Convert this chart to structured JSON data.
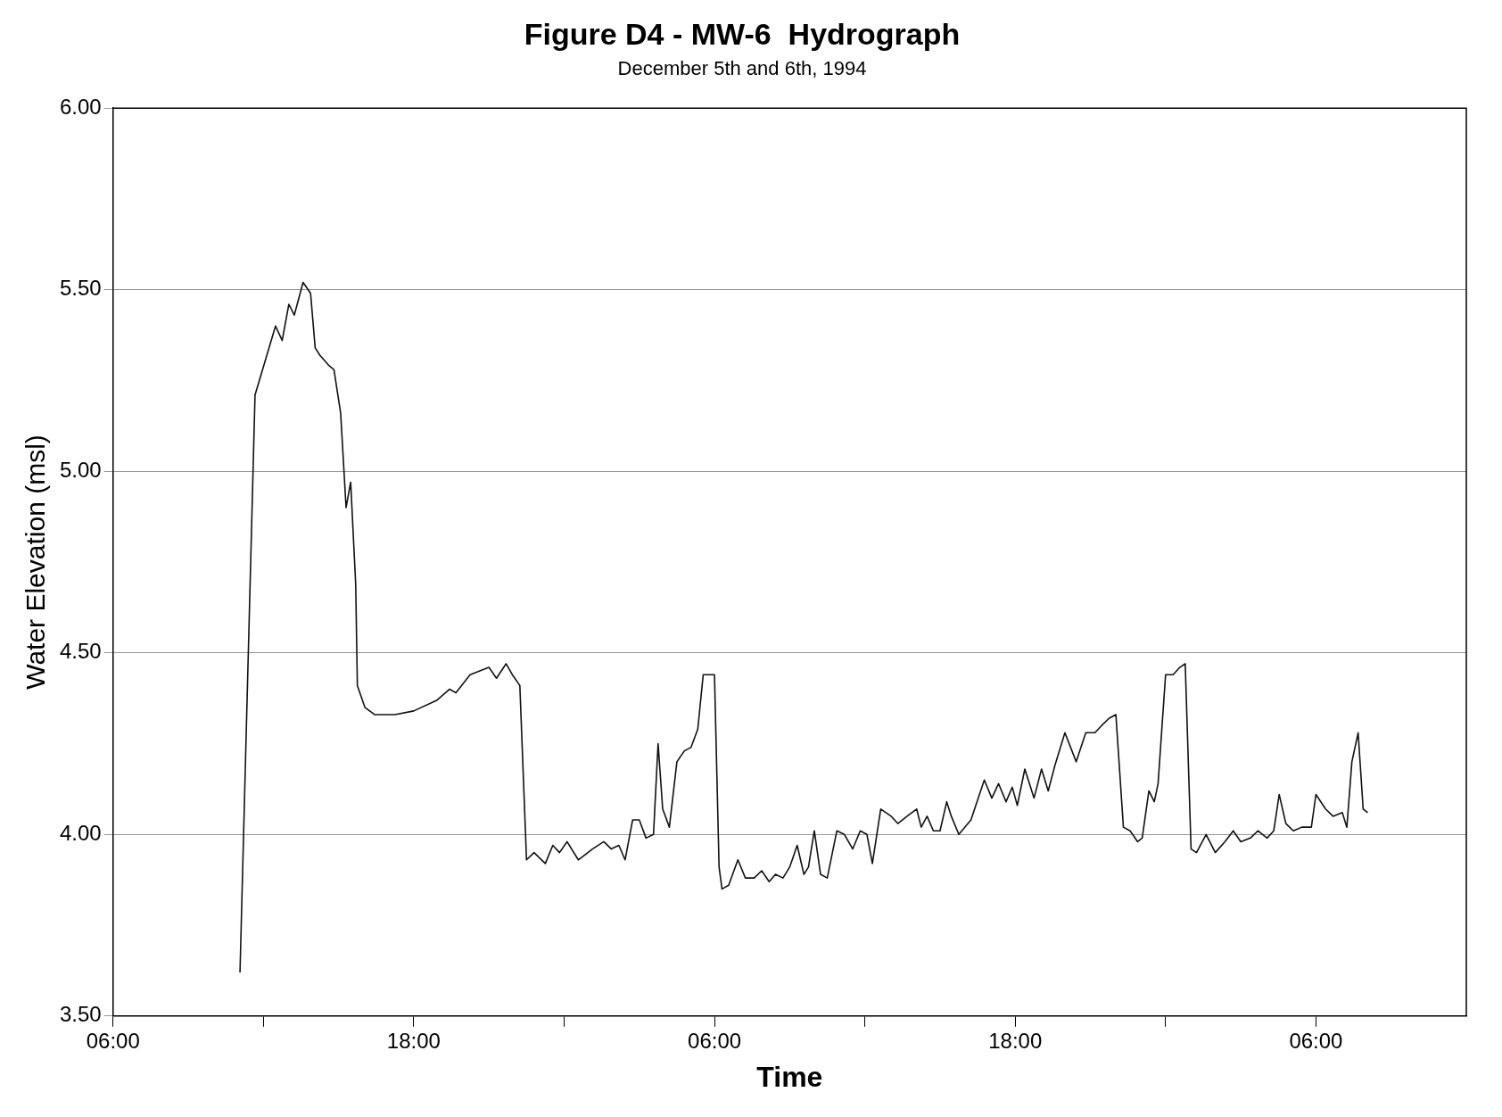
{
  "chart_data": {
    "type": "line",
    "title": "Figure D4 - MW-6  Hydrograph",
    "subtitle": "December 5th and 6th, 1994",
    "xlabel": "Time",
    "ylabel": "Water Elevation (msl)",
    "xlim": [
      "1994-12-05T06:00",
      "1994-12-07T12:00"
    ],
    "xticks": [
      {
        "value": "1994-12-05T06:00",
        "label": "06:00"
      },
      {
        "value": "1994-12-05T12:00",
        "label": null
      },
      {
        "value": "1994-12-05T18:00",
        "label": "18:00"
      },
      {
        "value": "1994-12-06T00:00",
        "label": null
      },
      {
        "value": "1994-12-06T06:00",
        "label": "06:00"
      },
      {
        "value": "1994-12-06T12:00",
        "label": null
      },
      {
        "value": "1994-12-06T18:00",
        "label": "18:00"
      },
      {
        "value": "1994-12-07T00:00",
        "label": null
      },
      {
        "value": "1994-12-07T06:00",
        "label": "06:00"
      }
    ],
    "ylim": [
      3.5,
      6
    ],
    "yticks": [
      {
        "value": 3.5,
        "label": "3.50"
      },
      {
        "value": 4,
        "label": "4.00"
      },
      {
        "value": 4.5,
        "label": "4.50"
      },
      {
        "value": 5,
        "label": "5.00"
      },
      {
        "value": 5.5,
        "label": "5.50"
      },
      {
        "value": 6,
        "label": "6.00"
      }
    ],
    "grid": "y",
    "marker": "none",
    "line_style": "solid",
    "series": [
      {
        "color": "#111111",
        "x": [
          "1994-12-05T11:04",
          "1994-12-05T11:40",
          "1994-12-05T12:29",
          "1994-12-05T12:45",
          "1994-12-05T13:01",
          "1994-12-05T13:14",
          "1994-12-05T13:35",
          "1994-12-05T13:53",
          "1994-12-05T14:04",
          "1994-12-05T14:15",
          "1994-12-05T14:38",
          "1994-12-05T14:49",
          "1994-12-05T15:05",
          "1994-12-05T15:18",
          "1994-12-05T15:29",
          "1994-12-05T15:41",
          "1994-12-05T15:45",
          "1994-12-05T16:03",
          "1994-12-05T16:26",
          "1994-12-05T16:53",
          "1994-12-05T17:15",
          "1994-12-05T18:00",
          "1994-12-05T18:56",
          "1994-12-05T19:26",
          "1994-12-05T19:41",
          "1994-12-05T20:15",
          "1994-12-05T20:38",
          "1994-12-05T21:00",
          "1994-12-05T21:18",
          "1994-12-05T21:41",
          "1994-12-05T21:56",
          "1994-12-05T22:14",
          "1994-12-05T22:30",
          "1994-12-05T22:48",
          "1994-12-05T23:15",
          "1994-12-05T23:33",
          "1994-12-05T23:49",
          "1994-12-06T00:07",
          "1994-12-06T00:34",
          "1994-12-06T01:08",
          "1994-12-06T01:35",
          "1994-12-06T01:53",
          "1994-12-06T02:11",
          "1994-12-06T02:26",
          "1994-12-06T02:44",
          "1994-12-06T03:00",
          "1994-12-06T03:16",
          "1994-12-06T03:34",
          "1994-12-06T03:45",
          "1994-12-06T03:56",
          "1994-12-06T04:12",
          "1994-12-06T04:30",
          "1994-12-06T04:48",
          "1994-12-06T05:04",
          "1994-12-06T05:20",
          "1994-12-06T05:33",
          "1994-12-06T06:00",
          "1994-12-06T06:11",
          "1994-12-06T06:18",
          "1994-12-06T06:34",
          "1994-12-06T06:56",
          "1994-12-06T07:14",
          "1994-12-06T07:35",
          "1994-12-06T07:53",
          "1994-12-06T08:11",
          "1994-12-06T08:26",
          "1994-12-06T08:44",
          "1994-12-06T09:00",
          "1994-12-06T09:18",
          "1994-12-06T09:34",
          "1994-12-06T09:45",
          "1994-12-06T09:59",
          "1994-12-06T10:14",
          "1994-12-06T10:30",
          "1994-12-06T10:53",
          "1994-12-06T11:11",
          "1994-12-06T11:31",
          "1994-12-06T11:49",
          "1994-12-06T12:05",
          "1994-12-06T12:18",
          "1994-12-06T12:38",
          "1994-12-06T13:03",
          "1994-12-06T13:19",
          "1994-12-06T13:41",
          "1994-12-06T14:04",
          "1994-12-06T14:15",
          "1994-12-06T14:29",
          "1994-12-06T14:44",
          "1994-12-06T15:00",
          "1994-12-06T15:16",
          "1994-12-06T15:27",
          "1994-12-06T15:45",
          "1994-12-06T16:14",
          "1994-12-06T16:46",
          "1994-12-06T17:04",
          "1994-12-06T17:20",
          "1994-12-06T17:38",
          "1994-12-06T17:53",
          "1994-12-06T18:05",
          "1994-12-06T18:23",
          "1994-12-06T18:45",
          "1994-12-06T19:03",
          "1994-12-06T19:19",
          "1994-12-06T19:35",
          "1994-12-06T19:59",
          "1994-12-06T20:26",
          "1994-12-06T20:49",
          "1994-12-06T21:11",
          "1994-12-06T21:27",
          "1994-12-06T21:45",
          "1994-12-06T22:01",
          "1994-12-06T22:19",
          "1994-12-06T22:35",
          "1994-12-06T22:53",
          "1994-12-06T23:04",
          "1994-12-06T23:20",
          "1994-12-06T23:33",
          "1994-12-06T23:42",
          "1994-12-07T00:00",
          "1994-12-07T00:18",
          "1994-12-07T00:34",
          "1994-12-07T00:47",
          "1994-12-07T01:01",
          "1994-12-07T01:14",
          "1994-12-07T01:37",
          "1994-12-07T01:59",
          "1994-12-07T02:22",
          "1994-12-07T02:42",
          "1994-12-07T03:00",
          "1994-12-07T03:23",
          "1994-12-07T03:41",
          "1994-12-07T04:03",
          "1994-12-07T04:19",
          "1994-12-07T04:32",
          "1994-12-07T04:48",
          "1994-12-07T05:06",
          "1994-12-07T05:26",
          "1994-12-07T05:49",
          "1994-12-07T06:00",
          "1994-12-07T06:23",
          "1994-12-07T06:41",
          "1994-12-07T07:03",
          "1994-12-07T07:14",
          "1994-12-07T07:26",
          "1994-12-07T07:41",
          "1994-12-07T07:53",
          "1994-12-07T08:04"
        ],
        "values": [
          3.62,
          5.21,
          5.4,
          5.36,
          5.46,
          5.43,
          5.52,
          5.49,
          5.34,
          5.32,
          5.29,
          5.28,
          5.16,
          4.9,
          4.97,
          4.69,
          4.41,
          4.35,
          4.33,
          4.33,
          4.33,
          4.34,
          4.37,
          4.4,
          4.39,
          4.44,
          4.45,
          4.46,
          4.43,
          4.47,
          4.44,
          4.41,
          3.93,
          3.95,
          3.92,
          3.97,
          3.95,
          3.98,
          3.93,
          3.96,
          3.98,
          3.96,
          3.97,
          3.93,
          4.04,
          4.04,
          3.99,
          4,
          4.25,
          4.07,
          4.02,
          4.2,
          4.23,
          4.24,
          4.29,
          4.44,
          4.44,
          3.91,
          3.85,
          3.86,
          3.93,
          3.88,
          3.88,
          3.9,
          3.87,
          3.89,
          3.88,
          3.91,
          3.97,
          3.89,
          3.91,
          4.01,
          3.89,
          3.88,
          4.01,
          4,
          3.96,
          4.01,
          4,
          3.92,
          4.07,
          4.05,
          4.03,
          4.05,
          4.07,
          4.02,
          4.05,
          4.01,
          4.01,
          4.09,
          4.05,
          4,
          4.04,
          4.15,
          4.1,
          4.14,
          4.09,
          4.13,
          4.08,
          4.18,
          4.1,
          4.18,
          4.12,
          4.19,
          4.28,
          4.2,
          4.28,
          4.28,
          4.3,
          4.32,
          4.33,
          4.02,
          4.01,
          3.98,
          3.99,
          4.12,
          4.09,
          4.14,
          4.44,
          4.44,
          4.46,
          4.47,
          3.96,
          3.95,
          4,
          3.95,
          3.98,
          4.01,
          3.98,
          3.99,
          4.01,
          3.99,
          4.01,
          4.11,
          4.03,
          4.01,
          4.02,
          4.02,
          4.11,
          4.07,
          4.05,
          4.06,
          4.02,
          4.2,
          4.28,
          4.07,
          4.06
        ]
      }
    ]
  }
}
